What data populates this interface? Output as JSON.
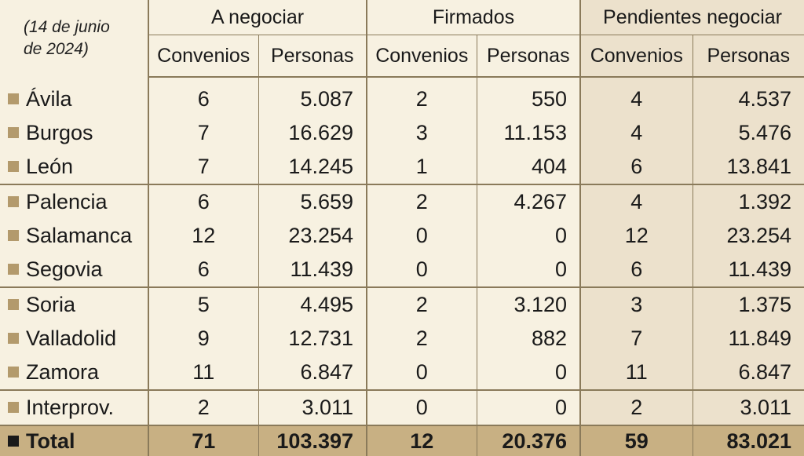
{
  "date_label_line1": "(14 de junio",
  "date_label_line2": "de 2024)",
  "groups": [
    "A negociar",
    "Firmados",
    "Pendientes negociar"
  ],
  "subheaders": [
    "Convenios",
    "Personas",
    "Convenios",
    "Personas",
    "Convenios",
    "Personas"
  ],
  "colors": {
    "bullet": "#b39a6c",
    "shade": "#ece1cc",
    "total_bg": "#c8b083",
    "background": "#f7f1e1"
  },
  "chart_data": {
    "type": "table",
    "columns": [
      "A negociar Convenios",
      "A negociar Personas",
      "Firmados Convenios",
      "Firmados Personas",
      "Pendientes negociar Convenios",
      "Pendientes negociar Personas"
    ],
    "rows": [
      {
        "name": "Ávila",
        "values": [
          "6",
          "5.087",
          "2",
          "550",
          "4",
          "4.537"
        ]
      },
      {
        "name": "Burgos",
        "values": [
          "7",
          "16.629",
          "3",
          "11.153",
          "4",
          "5.476"
        ]
      },
      {
        "name": "León",
        "values": [
          "7",
          "14.245",
          "1",
          "404",
          "6",
          "13.841"
        ]
      },
      {
        "name": "Palencia",
        "values": [
          "6",
          "5.659",
          "2",
          "4.267",
          "4",
          "1.392"
        ]
      },
      {
        "name": "Salamanca",
        "values": [
          "12",
          "23.254",
          "0",
          "0",
          "12",
          "23.254"
        ]
      },
      {
        "name": "Segovia",
        "values": [
          "6",
          "11.439",
          "0",
          "0",
          "6",
          "11.439"
        ]
      },
      {
        "name": "Soria",
        "values": [
          "5",
          "4.495",
          "2",
          "3.120",
          "3",
          "1.375"
        ]
      },
      {
        "name": "Valladolid",
        "values": [
          "9",
          "12.731",
          "2",
          "882",
          "7",
          "11.849"
        ]
      },
      {
        "name": "Zamora",
        "values": [
          "11",
          "6.847",
          "0",
          "0",
          "11",
          "6.847"
        ]
      },
      {
        "name": "Interprov.",
        "values": [
          "2",
          "3.011",
          "0",
          "0",
          "2",
          "3.011"
        ]
      }
    ],
    "total": {
      "name": "Total",
      "values": [
        "71",
        "103.397",
        "12",
        "20.376",
        "59",
        "83.021"
      ]
    }
  }
}
